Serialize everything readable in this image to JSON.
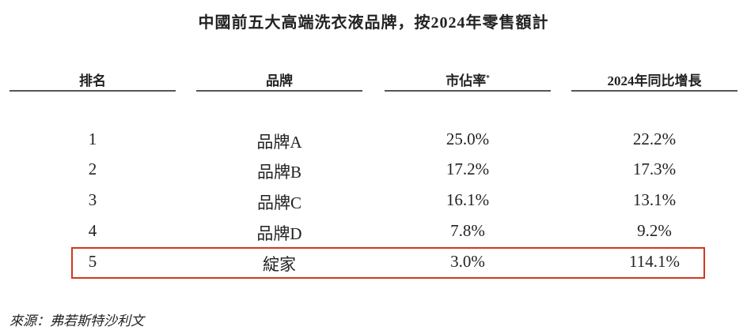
{
  "title": "中國前五大高端洗衣液品牌，按2024年零售額計",
  "headers": {
    "rank": "排名",
    "brand": "品牌",
    "share": "市佔率",
    "share_note": "*",
    "growth": "2024年同比增長"
  },
  "rows": [
    {
      "rank": "1",
      "brand": "品牌A",
      "share": "25.0%",
      "growth": "22.2%"
    },
    {
      "rank": "2",
      "brand": "品牌B",
      "share": "17.2%",
      "growth": "17.3%"
    },
    {
      "rank": "3",
      "brand": "品牌C",
      "share": "16.1%",
      "growth": "13.1%"
    },
    {
      "rank": "4",
      "brand": "品牌D",
      "share": "7.8%",
      "growth": "9.2%"
    },
    {
      "rank": "5",
      "brand": "綻家",
      "share": "3.0%",
      "growth": "114.1%"
    }
  ],
  "highlight_color": "#d0391f",
  "source": "來源：弗若斯特沙利文"
}
